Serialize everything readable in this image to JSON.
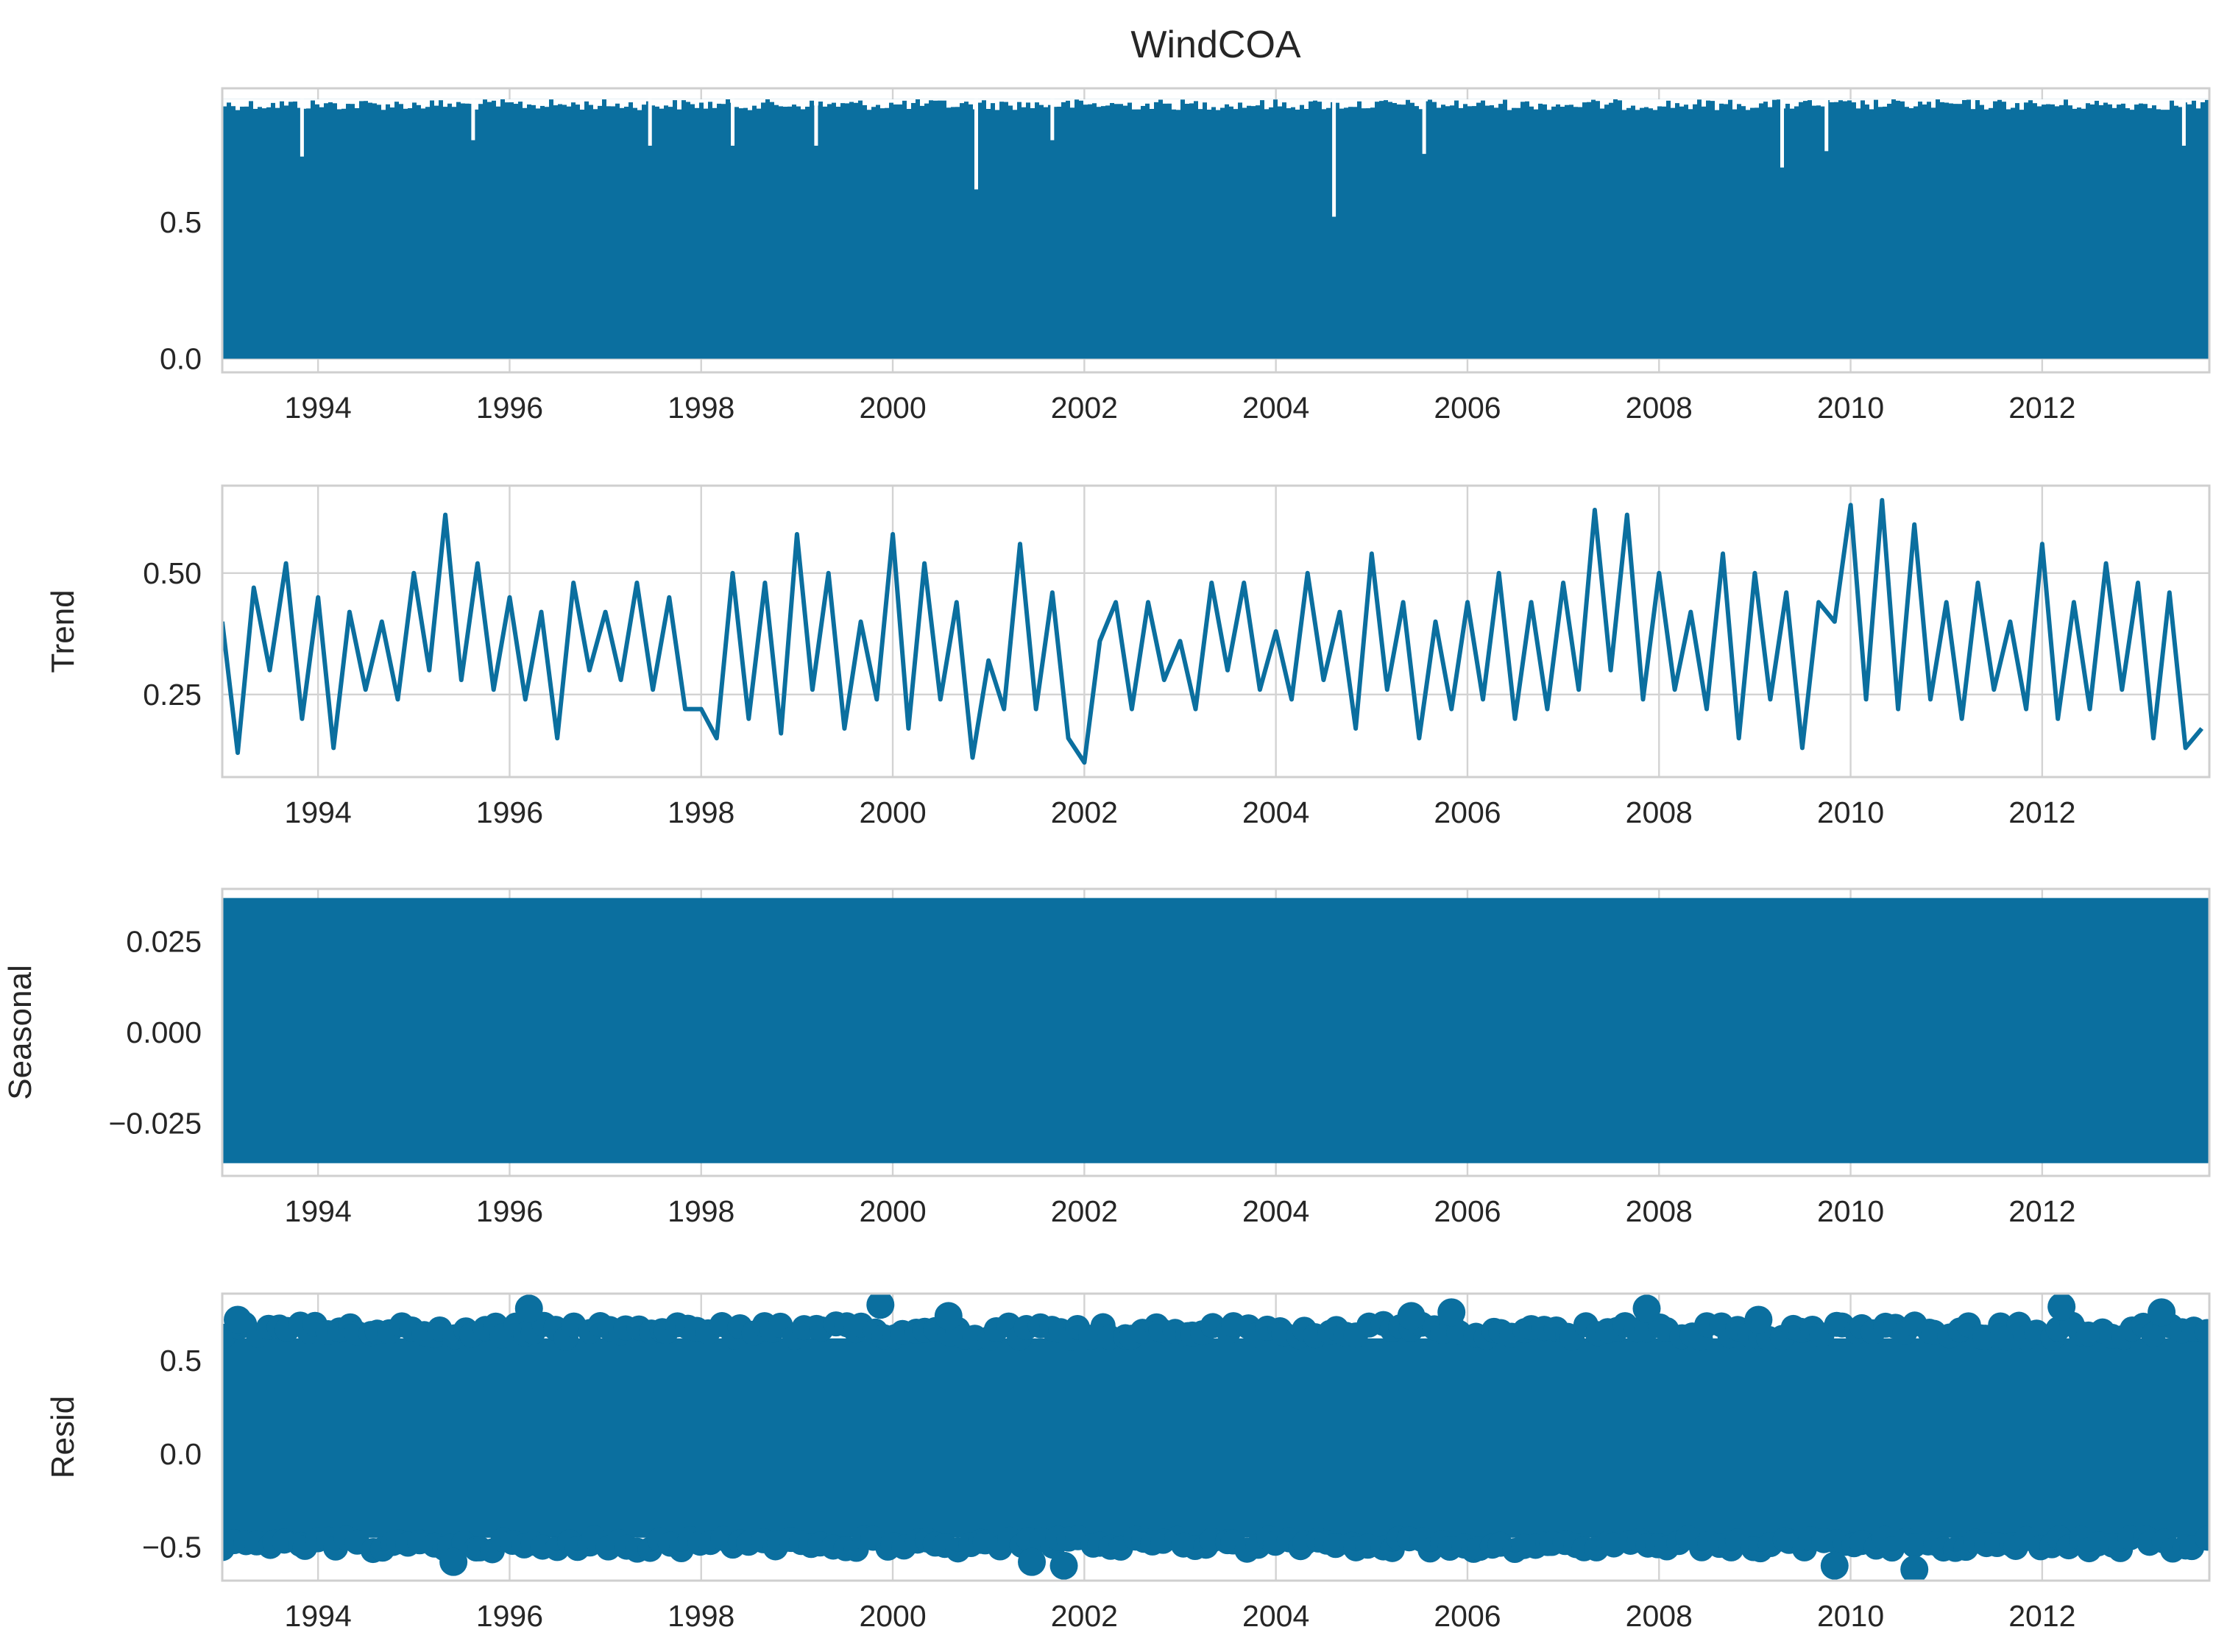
{
  "chart_data": {
    "type": "line",
    "title": "WindCOA",
    "x_range": [
      "1993-01-01",
      "2013-09-30"
    ],
    "x_ticks": [
      "1994",
      "1996",
      "1998",
      "2000",
      "2002",
      "2004",
      "2006",
      "2008",
      "2010",
      "2012"
    ],
    "grid": true,
    "colors": {
      "series": "#0b6f9f",
      "grid": "#d3d3d3",
      "axes_edge": "#cfcfcf",
      "text": "#262626"
    },
    "panels": [
      {
        "name": "observed",
        "ylabel": "",
        "style": "line-dense",
        "ylim": [
          -0.05,
          0.99
        ],
        "yticks": [
          "0.0",
          "0.5"
        ],
        "ytick_values": [
          0.0,
          0.5
        ],
        "value_range": [
          0.0,
          0.95
        ],
        "dips": [
          {
            "x": "1993-11-01",
            "y": 0.74
          },
          {
            "x": "1995-08-15",
            "y": 0.8
          },
          {
            "x": "1997-06-20",
            "y": 0.78
          },
          {
            "x": "1998-05-01",
            "y": 0.78
          },
          {
            "x": "1999-03-15",
            "y": 0.78
          },
          {
            "x": "2000-11-15",
            "y": 0.62
          },
          {
            "x": "2001-09-01",
            "y": 0.8
          },
          {
            "x": "2004-08-10",
            "y": 0.52
          },
          {
            "x": "2005-07-20",
            "y": 0.75
          },
          {
            "x": "2009-04-15",
            "y": 0.7
          },
          {
            "x": "2009-10-01",
            "y": 0.76
          },
          {
            "x": "2013-06-25",
            "y": 0.78
          }
        ]
      },
      {
        "name": "trend",
        "ylabel": "Trend",
        "style": "line",
        "ylim": [
          0.08,
          0.68
        ],
        "yticks": [
          "0.25",
          "0.50"
        ],
        "ytick_values": [
          0.25,
          0.5
        ],
        "x": [
          "1993-01-01",
          "1993-03-01",
          "1993-05-01",
          "1993-07-01",
          "1993-09-01",
          "1993-11-01",
          "1994-01-01",
          "1994-03-01",
          "1994-05-01",
          "1994-07-01",
          "1994-09-01",
          "1994-11-01",
          "1995-01-01",
          "1995-03-01",
          "1995-05-01",
          "1995-07-01",
          "1995-09-01",
          "1995-11-01",
          "1996-01-01",
          "1996-03-01",
          "1996-05-01",
          "1996-07-01",
          "1996-09-01",
          "1996-11-01",
          "1997-01-01",
          "1997-03-01",
          "1997-05-01",
          "1997-07-01",
          "1997-09-01",
          "1997-11-01",
          "1998-01-01",
          "1998-03-01",
          "1998-05-01",
          "1998-07-01",
          "1998-09-01",
          "1998-11-01",
          "1999-01-01",
          "1999-03-01",
          "1999-05-01",
          "1999-07-01",
          "1999-09-01",
          "1999-11-01",
          "2000-01-01",
          "2000-03-01",
          "2000-05-01",
          "2000-07-01",
          "2000-09-01",
          "2000-11-01",
          "2001-01-01",
          "2001-03-01",
          "2001-05-01",
          "2001-07-01",
          "2001-09-01",
          "2001-11-01",
          "2002-01-01",
          "2002-03-01",
          "2002-05-01",
          "2002-07-01",
          "2002-09-01",
          "2002-11-01",
          "2003-01-01",
          "2003-03-01",
          "2003-05-01",
          "2003-07-01",
          "2003-09-01",
          "2003-11-01",
          "2004-01-01",
          "2004-03-01",
          "2004-05-01",
          "2004-07-01",
          "2004-09-01",
          "2004-11-01",
          "2005-01-01",
          "2005-03-01",
          "2005-05-01",
          "2005-07-01",
          "2005-09-01",
          "2005-11-01",
          "2006-01-01",
          "2006-03-01",
          "2006-05-01",
          "2006-07-01",
          "2006-09-01",
          "2006-11-01",
          "2007-01-01",
          "2007-03-01",
          "2007-05-01",
          "2007-07-01",
          "2007-09-01",
          "2007-11-01",
          "2008-01-01",
          "2008-03-01",
          "2008-05-01",
          "2008-07-01",
          "2008-09-01",
          "2008-11-01",
          "2009-01-01",
          "2009-03-01",
          "2009-05-01",
          "2009-07-01",
          "2009-09-01",
          "2009-11-01",
          "2010-01-01",
          "2010-03-01",
          "2010-05-01",
          "2010-07-01",
          "2010-09-01",
          "2010-11-01",
          "2011-01-01",
          "2011-03-01",
          "2011-05-01",
          "2011-07-01",
          "2011-09-01",
          "2011-11-01",
          "2012-01-01",
          "2012-03-01",
          "2012-05-01",
          "2012-07-01",
          "2012-09-01",
          "2012-11-01",
          "2013-01-01",
          "2013-03-01",
          "2013-05-01",
          "2013-07-01",
          "2013-09-01"
        ],
        "values": [
          0.4,
          0.13,
          0.47,
          0.3,
          0.52,
          0.2,
          0.45,
          0.14,
          0.42,
          0.26,
          0.4,
          0.24,
          0.5,
          0.3,
          0.62,
          0.28,
          0.52,
          0.26,
          0.45,
          0.24,
          0.42,
          0.16,
          0.48,
          0.3,
          0.42,
          0.28,
          0.48,
          0.26,
          0.45,
          0.22,
          0.22,
          0.16,
          0.5,
          0.2,
          0.48,
          0.17,
          0.58,
          0.26,
          0.5,
          0.18,
          0.4,
          0.24,
          0.58,
          0.18,
          0.52,
          0.24,
          0.44,
          0.12,
          0.32,
          0.22,
          0.56,
          0.22,
          0.46,
          0.16,
          0.11,
          0.36,
          0.44,
          0.22,
          0.44,
          0.28,
          0.36,
          0.22,
          0.48,
          0.3,
          0.48,
          0.26,
          0.38,
          0.24,
          0.5,
          0.28,
          0.42,
          0.18,
          0.54,
          0.26,
          0.44,
          0.16,
          0.4,
          0.22,
          0.44,
          0.24,
          0.5,
          0.2,
          0.44,
          0.22,
          0.48,
          0.26,
          0.63,
          0.3,
          0.62,
          0.24,
          0.5,
          0.26,
          0.42,
          0.22,
          0.54,
          0.16,
          0.5,
          0.24,
          0.46,
          0.14,
          0.44,
          0.4,
          0.64,
          0.24,
          0.65,
          0.22,
          0.6,
          0.24,
          0.44,
          0.2,
          0.48,
          0.26,
          0.4,
          0.22,
          0.56,
          0.2,
          0.44,
          0.22,
          0.52,
          0.26,
          0.48,
          0.16,
          0.46,
          0.14,
          0.18
        ]
      },
      {
        "name": "seasonal",
        "ylabel": "Seasonal",
        "style": "band",
        "ylim": [
          -0.0395,
          0.0395
        ],
        "yticks": [
          "−0.025",
          "0.000",
          "0.025"
        ],
        "ytick_values": [
          -0.025,
          0.0,
          0.025
        ],
        "band": [
          -0.036,
          0.037
        ]
      },
      {
        "name": "resid",
        "ylabel": "Resid",
        "style": "scatter-dense",
        "ylim": [
          -0.68,
          0.86
        ],
        "yticks": [
          "−0.5",
          "0.0",
          "0.5"
        ],
        "ytick_values": [
          -0.5,
          0.0,
          0.5
        ],
        "band": [
          -0.45,
          0.62
        ],
        "extremes": [
          {
            "x": "1993-03-01",
            "y": 0.72
          },
          {
            "x": "1995-06-01",
            "y": -0.58
          },
          {
            "x": "1996-03-15",
            "y": 0.78
          },
          {
            "x": "1999-11-15",
            "y": 0.8
          },
          {
            "x": "2000-08-01",
            "y": 0.74
          },
          {
            "x": "2001-06-15",
            "y": -0.58
          },
          {
            "x": "2001-10-15",
            "y": -0.6
          },
          {
            "x": "2005-06-01",
            "y": 0.74
          },
          {
            "x": "2005-11-01",
            "y": 0.76
          },
          {
            "x": "2007-11-15",
            "y": 0.78
          },
          {
            "x": "2009-01-15",
            "y": 0.72
          },
          {
            "x": "2009-11-01",
            "y": -0.6
          },
          {
            "x": "2010-09-01",
            "y": -0.62
          },
          {
            "x": "2012-03-15",
            "y": 0.79
          },
          {
            "x": "2013-04-01",
            "y": 0.76
          }
        ]
      }
    ]
  }
}
